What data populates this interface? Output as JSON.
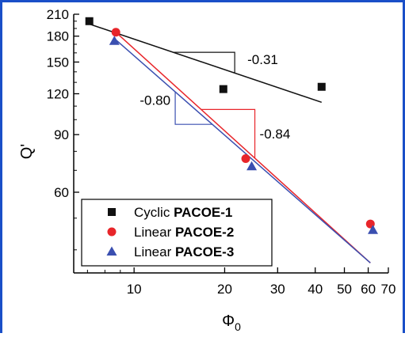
{
  "chart_data": {
    "type": "scatter",
    "xlabel": "Φ",
    "xlabel_sub": "0",
    "ylabel": "Q'",
    "x_scale": "log",
    "y_scale": "log",
    "xlim": [
      6.3,
      70
    ],
    "ylim": [
      34,
      210
    ],
    "x_ticks": [
      {
        "value": 10,
        "label": "10"
      },
      {
        "value": 20,
        "label": "20"
      },
      {
        "value": 30,
        "label": "30"
      },
      {
        "value": 40,
        "label": "40"
      },
      {
        "value": 50,
        "label": "50"
      },
      {
        "value": 60,
        "label": "60"
      },
      {
        "value": 70,
        "label": "70"
      }
    ],
    "y_ticks": [
      {
        "value": 60,
        "label": "60"
      },
      {
        "value": 90,
        "label": "90"
      },
      {
        "value": 120,
        "label": "120"
      },
      {
        "value": 150,
        "label": "150"
      },
      {
        "value": 180,
        "label": "180"
      },
      {
        "value": 210,
        "label": "210"
      }
    ],
    "legend_position": "bottom-left",
    "series": [
      {
        "name_plain": "Cyclic ",
        "name_bold": "PACOE-1",
        "marker": "square",
        "color": "#111111",
        "points": [
          [
            7.1,
            200
          ],
          [
            19.8,
            124
          ],
          [
            42,
            126
          ]
        ],
        "fit": [
          [
            7.1,
            196
          ],
          [
            42,
            113
          ]
        ],
        "slope_label": "-0.31"
      },
      {
        "name_plain": "Linear ",
        "name_bold": "PACOE-2",
        "marker": "circle",
        "color": "#e8252a",
        "points": [
          [
            8.7,
            185
          ],
          [
            23.5,
            76
          ],
          [
            61,
            48
          ]
        ],
        "fit": [
          [
            8.7,
            185
          ],
          [
            61,
            36.5
          ]
        ],
        "slope_label": "-0.84"
      },
      {
        "name_plain": "Linear ",
        "name_bold": "PACOE-3",
        "marker": "triangle",
        "color": "#3a4fb0",
        "points": [
          [
            8.6,
            174
          ],
          [
            24.6,
            72
          ],
          [
            62.2,
            46
          ]
        ],
        "fit": [
          [
            8.6,
            177
          ],
          [
            61,
            36.5
          ]
        ],
        "slope_label": "-0.80"
      }
    ]
  }
}
